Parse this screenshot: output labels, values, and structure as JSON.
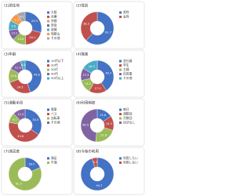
{
  "chart_data": [
    {
      "type": "pie",
      "title": "(1)居住地",
      "categories": [
        "大阪",
        "兵庫",
        "京都",
        "奈良",
        "滋賀",
        "和歌山",
        "その他"
      ],
      "values": [
        29.3,
        20.1,
        13.5,
        10.2,
        9.6,
        9.2,
        8.1
      ],
      "colors": [
        "#4472c4",
        "#c0504d",
        "#9bbb59",
        "#8064a2",
        "#4bacc6",
        "#f79646",
        "#a5a5a5"
      ]
    },
    {
      "type": "pie",
      "title": "(2)性別",
      "categories": [
        "男性",
        "女性"
      ],
      "values": [
        61.7,
        38.3
      ],
      "colors": [
        "#4472c4",
        "#c0504d"
      ]
    },
    {
      "type": "pie",
      "title": "(3)年齢",
      "categories": [
        "10代以下",
        "20代",
        "30代",
        "40代",
        "50代以上"
      ],
      "values": [
        44.8,
        24.5,
        13.8,
        12.3,
        4.6
      ],
      "colors": [
        "#4472c4",
        "#c0504d",
        "#9bbb59",
        "#8064a2",
        "#4bacc6"
      ]
    },
    {
      "type": "pie",
      "title": "(4)職業",
      "categories": [
        "会社員",
        "学生",
        "主婦",
        "自営業",
        "その他"
      ],
      "values": [
        40.7,
        17.5,
        13.2,
        12.3,
        16.3
      ],
      "colors": [
        "#4472c4",
        "#c0504d",
        "#9bbb59",
        "#8064a2",
        "#4bacc6"
      ]
    },
    {
      "type": "pie",
      "title": "(5)通勤手段",
      "categories": [
        "電車",
        "バス",
        "自転車",
        "その他"
      ],
      "values": [
        34.5,
        43.6,
        9.7,
        12.2
      ],
      "colors": [
        "#4472c4",
        "#c0504d",
        "#9bbb59",
        "#8064a2"
      ]
    },
    {
      "type": "pie",
      "title": "(6)利用頻度",
      "categories": [
        "毎日",
        "週数回",
        "月数回",
        "ほぼなし"
      ],
      "values": [
        15.6,
        14.3,
        21.6,
        48.5
      ],
      "colors": [
        "#4472c4",
        "#c0504d",
        "#9bbb59",
        "#8064a2"
      ]
    },
    {
      "type": "pie",
      "title": "(7)満足度",
      "categories": [
        "満足",
        "不満"
      ],
      "values": [
        18.5,
        81.5
      ],
      "colors": [
        "#4472c4",
        "#9bbb59"
      ]
    },
    {
      "type": "pie",
      "title": "(8)今後の利用",
      "categories": [
        "利用したい",
        "利用しない"
      ],
      "values": [
        94.7,
        5.3
      ],
      "colors": [
        "#4472c4",
        "#c0504d"
      ]
    }
  ]
}
